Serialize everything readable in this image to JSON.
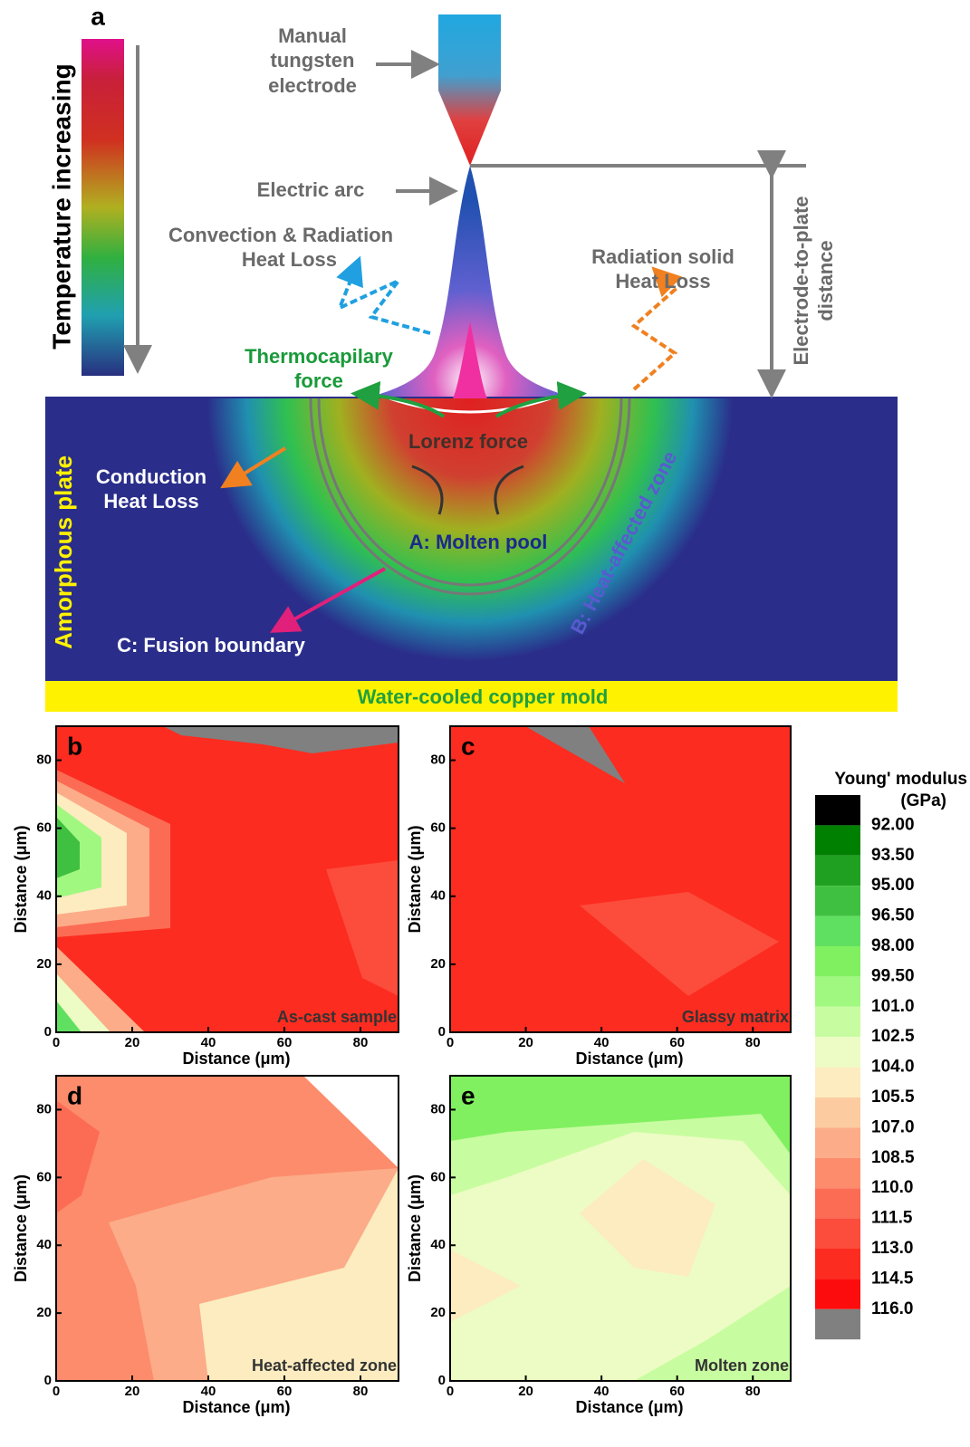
{
  "panel_a": {
    "label": "a",
    "temperature_label": "Temperature increasing",
    "electrode": [
      "Manual",
      "tungsten",
      "electrode"
    ],
    "arc": "Electric arc",
    "convection": [
      "Convection & Radiation",
      "Heat Loss"
    ],
    "radiation": [
      "Radiation solid",
      "Heat Loss"
    ],
    "distance": [
      "Electrode-to-plate",
      "distance"
    ],
    "thermocapillary": [
      "Thermocapilary",
      "force"
    ],
    "lorenz": "Lorenz force",
    "conduction": [
      "Conduction",
      "Heat Loss"
    ],
    "molten_pool": "A: Molten pool",
    "haz": "B: Heat-affected zone",
    "fusion": "C: Fusion boundary",
    "plate": "Amorphous plate",
    "mold": "Water-cooled copper mold"
  },
  "axes": {
    "xlabel": "Distance (μm)",
    "ylabel": "Distance (μm)",
    "xlim": [
      0,
      90
    ],
    "ylim": [
      0,
      90
    ],
    "xticks": [
      0,
      20,
      40,
      60,
      80
    ],
    "yticks": [
      0,
      20,
      40,
      60,
      80
    ]
  },
  "panels": [
    {
      "label": "b",
      "caption": "As-cast sample"
    },
    {
      "label": "c",
      "caption": "Glassy matrix"
    },
    {
      "label": "d",
      "caption": "Heat-affected zone"
    },
    {
      "label": "e",
      "caption": "Molten zone"
    }
  ],
  "colorbar": {
    "title": "Young' modulus",
    "unit": "(GPa)",
    "levels": [
      {
        "value": 92,
        "label": "92.00"
      },
      {
        "value": 93.5,
        "label": "93.50"
      },
      {
        "value": 95,
        "label": "95.00"
      },
      {
        "value": 96.5,
        "label": "96.50"
      },
      {
        "value": 98,
        "label": "98.00"
      },
      {
        "value": 99.5,
        "label": "99.50"
      },
      {
        "value": 101,
        "label": "101.0"
      },
      {
        "value": 102.5,
        "label": "102.5"
      },
      {
        "value": 104,
        "label": "104.0"
      },
      {
        "value": 105.5,
        "label": "105.5"
      },
      {
        "value": 107,
        "label": "107.0"
      },
      {
        "value": 108.5,
        "label": "108.5"
      },
      {
        "value": 110,
        "label": "110.0"
      },
      {
        "value": 111.5,
        "label": "111.5"
      },
      {
        "value": 113,
        "label": "113.0"
      },
      {
        "value": 114.5,
        "label": "114.5"
      },
      {
        "value": 116,
        "label": "116.0"
      }
    ],
    "colors": [
      "#000000",
      "#008000",
      "#20a020",
      "#40c040",
      "#60e060",
      "#80f060",
      "#a0f880",
      "#c8fca0",
      "#ecfcc4",
      "#fcecc0",
      "#fccca0",
      "#fcac88",
      "#fc8c6c",
      "#fc6c54",
      "#fc4c3c",
      "#fc2c20",
      "#fc0c0c",
      "#808080"
    ]
  }
}
